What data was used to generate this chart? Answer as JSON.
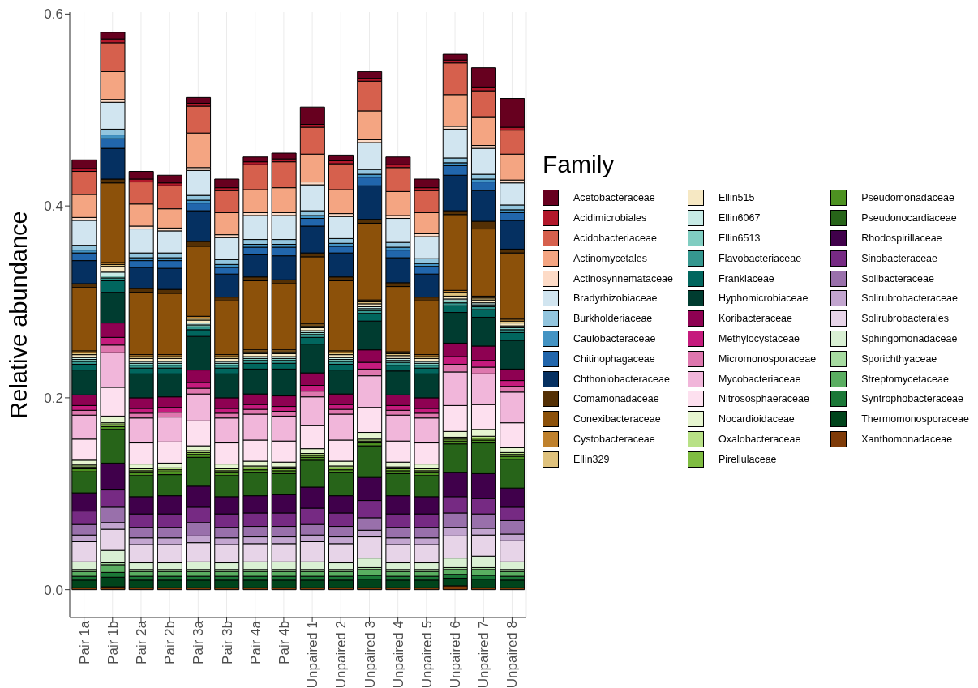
{
  "chart_data": {
    "type": "bar",
    "stacked": true,
    "ylabel": "Relative abundance",
    "legend_title": "Family",
    "legend": "right",
    "grid": true,
    "categories": [
      "Pair 1a",
      "Pair 1b",
      "Pair 2a",
      "Pair 2b",
      "Pair 3a",
      "Pair 3b",
      "Pair 4a",
      "Pair 4b",
      "Unpaired 1",
      "Unpaired 2",
      "Unpaired 3",
      "Unpaired 4",
      "Unpaired 5",
      "Unpaired 6",
      "Unpaired 7",
      "Unpaired 8"
    ],
    "ylim": [
      -0.029,
      0.602
    ],
    "yticks": [
      {
        "value": 0,
        "label": "0.0"
      },
      {
        "value": 0.2,
        "label": "0.2"
      },
      {
        "value": 0.4,
        "label": "0.4"
      },
      {
        "value": 0.6,
        "label": "0.6"
      }
    ],
    "series": [
      {
        "name": "Xanthomonadaceae",
        "color": "#7f3b08",
        "values": [
          0.002,
          0.003,
          0.002,
          0.002,
          0.002,
          0.002,
          0.002,
          0.002,
          0.002,
          0.002,
          0.002,
          0.002,
          0.002,
          0.004,
          0.002,
          0.002
        ]
      },
      {
        "name": "Thermomonosporaceae",
        "color": "#00441b",
        "values": [
          0.008,
          0.01,
          0.008,
          0.008,
          0.008,
          0.008,
          0.008,
          0.008,
          0.008,
          0.008,
          0.009,
          0.008,
          0.008,
          0.008,
          0.009,
          0.008
        ]
      },
      {
        "name": "Syntrophobacteraceae",
        "color": "#1b7837",
        "values": [
          0.004,
          0.005,
          0.004,
          0.004,
          0.004,
          0.004,
          0.004,
          0.004,
          0.004,
          0.004,
          0.004,
          0.004,
          0.004,
          0.004,
          0.004,
          0.004
        ]
      },
      {
        "name": "Streptomycetaceae",
        "color": "#5aae61",
        "values": [
          0.005,
          0.008,
          0.005,
          0.005,
          0.005,
          0.005,
          0.005,
          0.005,
          0.005,
          0.005,
          0.006,
          0.005,
          0.005,
          0.005,
          0.006,
          0.005
        ]
      },
      {
        "name": "Sporichthyaceae",
        "color": "#a6dba0",
        "values": [
          0.002,
          0.002,
          0.002,
          0.002,
          0.002,
          0.002,
          0.002,
          0.002,
          0.002,
          0.002,
          0.002,
          0.002,
          0.002,
          0.002,
          0.002,
          0.002
        ]
      },
      {
        "name": "Sphingomonadaceae",
        "color": "#d9f0d3",
        "values": [
          0.008,
          0.013,
          0.007,
          0.007,
          0.008,
          0.007,
          0.008,
          0.008,
          0.008,
          0.007,
          0.01,
          0.007,
          0.007,
          0.01,
          0.012,
          0.008
        ]
      },
      {
        "name": "Solirubrobacterales",
        "color": "#e7d4e8",
        "values": [
          0.021,
          0.022,
          0.019,
          0.019,
          0.02,
          0.019,
          0.019,
          0.019,
          0.021,
          0.02,
          0.022,
          0.019,
          0.019,
          0.023,
          0.022,
          0.022
        ]
      },
      {
        "name": "Solirubrobacteraceae",
        "color": "#c2a5cf",
        "values": [
          0.007,
          0.007,
          0.007,
          0.007,
          0.007,
          0.007,
          0.007,
          0.007,
          0.007,
          0.007,
          0.007,
          0.007,
          0.007,
          0.009,
          0.007,
          0.007
        ]
      },
      {
        "name": "Solibacteraceae",
        "color": "#9970ab",
        "values": [
          0.011,
          0.016,
          0.011,
          0.011,
          0.014,
          0.011,
          0.011,
          0.011,
          0.011,
          0.011,
          0.013,
          0.011,
          0.011,
          0.015,
          0.015,
          0.014
        ]
      },
      {
        "name": "Sinobacteraceae",
        "color": "#762a83",
        "values": [
          0.014,
          0.018,
          0.014,
          0.014,
          0.016,
          0.014,
          0.014,
          0.014,
          0.017,
          0.014,
          0.018,
          0.014,
          0.014,
          0.017,
          0.016,
          0.014
        ]
      },
      {
        "name": "Rhodospirillaceae",
        "color": "#40004b",
        "values": [
          0.019,
          0.028,
          0.018,
          0.019,
          0.022,
          0.018,
          0.018,
          0.019,
          0.022,
          0.018,
          0.024,
          0.019,
          0.018,
          0.025,
          0.026,
          0.02
        ]
      },
      {
        "name": "Pseudonocardiaceae",
        "color": "#276419",
        "values": [
          0.022,
          0.035,
          0.022,
          0.022,
          0.03,
          0.022,
          0.024,
          0.022,
          0.028,
          0.024,
          0.033,
          0.023,
          0.022,
          0.03,
          0.032,
          0.03
        ]
      },
      {
        "name": "Pseudomonadaceae",
        "color": "#4d9221",
        "values": [
          0.003,
          0.003,
          0.003,
          0.003,
          0.003,
          0.003,
          0.003,
          0.003,
          0.003,
          0.003,
          0.003,
          0.003,
          0.003,
          0.003,
          0.003,
          0.003
        ]
      },
      {
        "name": "Pirellulaceae",
        "color": "#7fbc41",
        "values": [
          0.002,
          0.002,
          0.002,
          0.002,
          0.002,
          0.002,
          0.002,
          0.002,
          0.002,
          0.002,
          0.002,
          0.002,
          0.002,
          0.002,
          0.002,
          0.002
        ]
      },
      {
        "name": "Oxalobacteraceae",
        "color": "#b8e186",
        "values": [
          0.002,
          0.002,
          0.002,
          0.002,
          0.002,
          0.002,
          0.002,
          0.002,
          0.002,
          0.002,
          0.002,
          0.002,
          0.002,
          0.002,
          0.002,
          0.002
        ]
      },
      {
        "name": "Nocardioidaceae",
        "color": "#e6f5d0",
        "values": [
          0.005,
          0.007,
          0.005,
          0.005,
          0.005,
          0.005,
          0.005,
          0.005,
          0.005,
          0.005,
          0.007,
          0.005,
          0.005,
          0.006,
          0.007,
          0.005
        ]
      },
      {
        "name": "Nitrososphaeraceae",
        "color": "#fde0ef",
        "values": [
          0.022,
          0.03,
          0.022,
          0.022,
          0.026,
          0.022,
          0.022,
          0.022,
          0.024,
          0.022,
          0.026,
          0.022,
          0.022,
          0.027,
          0.026,
          0.026
        ]
      },
      {
        "name": "Mycobacteriaceae",
        "color": "#f1b6da",
        "values": [
          0.025,
          0.036,
          0.026,
          0.026,
          0.028,
          0.026,
          0.027,
          0.026,
          0.03,
          0.027,
          0.033,
          0.027,
          0.026,
          0.035,
          0.032,
          0.032
        ]
      },
      {
        "name": "Micromonosporaceae",
        "color": "#de77ae",
        "values": [
          0.005,
          0.008,
          0.005,
          0.005,
          0.006,
          0.005,
          0.005,
          0.005,
          0.006,
          0.005,
          0.007,
          0.005,
          0.005,
          0.008,
          0.007,
          0.006
        ]
      },
      {
        "name": "Methylocystaceae",
        "color": "#c51b7d",
        "values": [
          0.005,
          0.008,
          0.005,
          0.005,
          0.006,
          0.005,
          0.005,
          0.005,
          0.006,
          0.005,
          0.007,
          0.005,
          0.005,
          0.008,
          0.007,
          0.006
        ]
      },
      {
        "name": "Koribacteraceae",
        "color": "#8e0152",
        "values": [
          0.011,
          0.015,
          0.011,
          0.011,
          0.013,
          0.011,
          0.011,
          0.011,
          0.013,
          0.011,
          0.013,
          0.011,
          0.011,
          0.014,
          0.015,
          0.012
        ]
      },
      {
        "name": "Hyphomicrobiaceae",
        "color": "#003c30",
        "values": [
          0.026,
          0.032,
          0.025,
          0.024,
          0.035,
          0.025,
          0.026,
          0.028,
          0.03,
          0.025,
          0.03,
          0.025,
          0.025,
          0.032,
          0.03,
          0.03
        ]
      },
      {
        "name": "Frankiaceae",
        "color": "#01665e",
        "values": [
          0.006,
          0.012,
          0.006,
          0.006,
          0.007,
          0.006,
          0.006,
          0.006,
          0.007,
          0.006,
          0.008,
          0.006,
          0.006,
          0.007,
          0.008,
          0.008
        ]
      },
      {
        "name": "Flavobacteriaceae",
        "color": "#35978f",
        "values": [
          0.003,
          0.003,
          0.003,
          0.003,
          0.003,
          0.003,
          0.003,
          0.003,
          0.003,
          0.003,
          0.003,
          0.003,
          0.003,
          0.003,
          0.003,
          0.003
        ]
      },
      {
        "name": "Ellin6513",
        "color": "#80cdc1",
        "values": [
          0.002,
          0.002,
          0.002,
          0.002,
          0.002,
          0.002,
          0.002,
          0.002,
          0.002,
          0.002,
          0.002,
          0.002,
          0.002,
          0.002,
          0.002,
          0.002
        ]
      },
      {
        "name": "Ellin6067",
        "color": "#c7eae5",
        "values": [
          0.002,
          0.004,
          0.002,
          0.002,
          0.002,
          0.002,
          0.002,
          0.002,
          0.002,
          0.002,
          0.002,
          0.002,
          0.002,
          0.002,
          0.002,
          0.002
        ]
      },
      {
        "name": "Ellin515",
        "color": "#f6e8c3",
        "values": [
          0.003,
          0.006,
          0.003,
          0.003,
          0.003,
          0.003,
          0.003,
          0.003,
          0.003,
          0.003,
          0.003,
          0.003,
          0.003,
          0.003,
          0.003,
          0.003
        ]
      },
      {
        "name": "Ellin329",
        "color": "#dfc27d",
        "values": [
          0.002,
          0.002,
          0.002,
          0.002,
          0.002,
          0.002,
          0.002,
          0.002,
          0.002,
          0.002,
          0.002,
          0.002,
          0.002,
          0.004,
          0.002,
          0.002
        ]
      },
      {
        "name": "Cystobacteraceae",
        "color": "#bf812d",
        "values": [
          0.002,
          0.002,
          0.002,
          0.002,
          0.002,
          0.002,
          0.002,
          0.002,
          0.002,
          0.002,
          0.002,
          0.002,
          0.002,
          0.002,
          0.002,
          0.002
        ]
      },
      {
        "name": "Conexibacteraceae",
        "color": "#8c510a",
        "values": [
          0.066,
          0.083,
          0.065,
          0.064,
          0.073,
          0.056,
          0.072,
          0.069,
          0.07,
          0.073,
          0.08,
          0.068,
          0.056,
          0.079,
          0.07,
          0.069
        ]
      },
      {
        "name": "Comamonadaceae",
        "color": "#543005",
        "values": [
          0.004,
          0.004,
          0.004,
          0.004,
          0.005,
          0.004,
          0.004,
          0.004,
          0.004,
          0.004,
          0.004,
          0.004,
          0.004,
          0.004,
          0.008,
          0.004
        ]
      },
      {
        "name": "Chthoniobacteraceae",
        "color": "#053061",
        "values": [
          0.024,
          0.032,
          0.022,
          0.022,
          0.032,
          0.024,
          0.023,
          0.025,
          0.028,
          0.025,
          0.035,
          0.026,
          0.024,
          0.037,
          0.032,
          0.03
        ]
      },
      {
        "name": "Chitinophagaceae",
        "color": "#2166ac",
        "values": [
          0.008,
          0.01,
          0.007,
          0.008,
          0.008,
          0.007,
          0.008,
          0.009,
          0.008,
          0.007,
          0.009,
          0.008,
          0.008,
          0.01,
          0.009,
          0.008
        ]
      },
      {
        "name": "Caulobacteraceae",
        "color": "#4393c3",
        "values": [
          0.003,
          0.004,
          0.003,
          0.003,
          0.003,
          0.003,
          0.003,
          0.003,
          0.003,
          0.003,
          0.003,
          0.003,
          0.003,
          0.003,
          0.003,
          0.003
        ]
      },
      {
        "name": "Burkholderiaceae",
        "color": "#92c5de",
        "values": [
          0.005,
          0.006,
          0.005,
          0.005,
          0.005,
          0.005,
          0.005,
          0.005,
          0.005,
          0.005,
          0.005,
          0.005,
          0.005,
          0.005,
          0.005,
          0.005
        ]
      },
      {
        "name": "Bradyrhizobiaceae",
        "color": "#d1e5f0",
        "values": [
          0.026,
          0.028,
          0.025,
          0.023,
          0.026,
          0.023,
          0.025,
          0.025,
          0.027,
          0.023,
          0.028,
          0.025,
          0.023,
          0.03,
          0.027,
          0.023
        ]
      },
      {
        "name": "Actinosynnemataceae",
        "color": "#fddbc7",
        "values": [
          0.003,
          0.003,
          0.003,
          0.003,
          0.003,
          0.003,
          0.003,
          0.003,
          0.003,
          0.003,
          0.003,
          0.003,
          0.003,
          0.003,
          0.003,
          0.003
        ]
      },
      {
        "name": "Actinomycetales",
        "color": "#f4a582",
        "values": [
          0.024,
          0.029,
          0.023,
          0.02,
          0.036,
          0.023,
          0.024,
          0.026,
          0.029,
          0.025,
          0.03,
          0.025,
          0.022,
          0.033,
          0.03,
          0.027
        ]
      },
      {
        "name": "Acidobacteriaceae",
        "color": "#d6604d",
        "values": [
          0.024,
          0.03,
          0.023,
          0.024,
          0.028,
          0.023,
          0.026,
          0.027,
          0.028,
          0.027,
          0.031,
          0.025,
          0.023,
          0.033,
          0.027,
          0.025
        ]
      },
      {
        "name": "Acidimicrobiales",
        "color": "#b2182b",
        "values": [
          0.003,
          0.004,
          0.003,
          0.003,
          0.003,
          0.003,
          0.003,
          0.003,
          0.003,
          0.003,
          0.003,
          0.003,
          0.003,
          0.003,
          0.004,
          0.003
        ]
      },
      {
        "name": "Acetobacteraceae",
        "color": "#67001f",
        "values": [
          0.009,
          0.007,
          0.008,
          0.008,
          0.006,
          0.009,
          0.005,
          0.006,
          0.018,
          0.006,
          0.007,
          0.008,
          0.009,
          0.006,
          0.02,
          0.03
        ]
      }
    ]
  }
}
